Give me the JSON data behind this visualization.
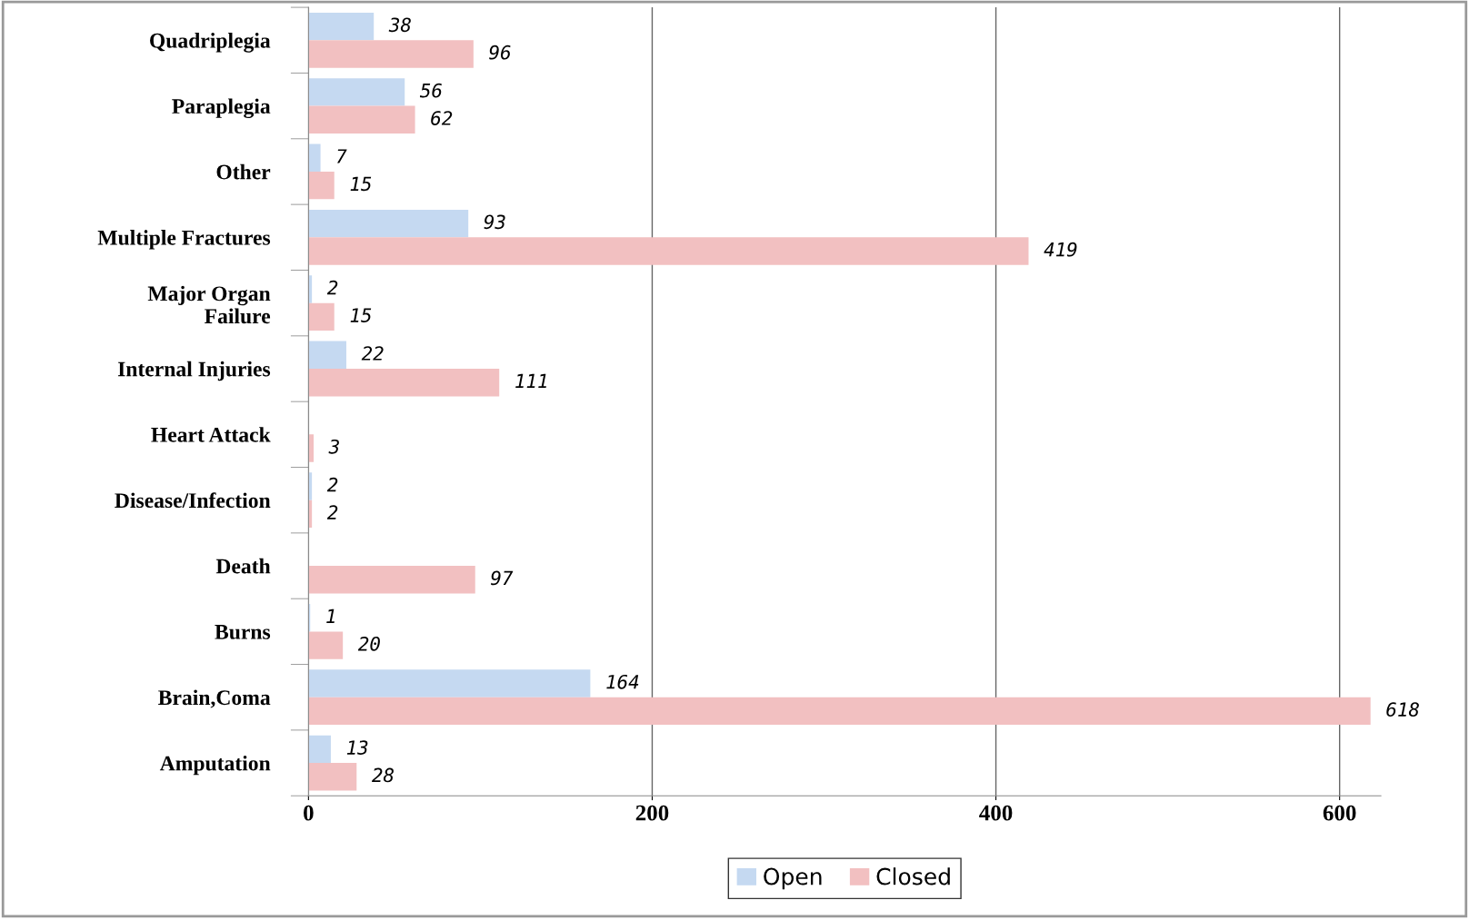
{
  "chart_data": {
    "type": "bar",
    "orientation": "horizontal",
    "categories": [
      "Quadriplegia",
      "Paraplegia",
      "Other",
      "Multiple Fractures",
      "Major Organ\nFailure",
      "Internal Injuries",
      "Heart Attack",
      "Disease/Infection",
      "Death",
      "Burns",
      "Brain,Coma",
      "Amputation"
    ],
    "series": [
      {
        "name": "Open",
        "color": "#c5d9f1",
        "values": [
          38,
          56,
          7,
          93,
          2,
          22,
          null,
          2,
          null,
          1,
          164,
          13
        ]
      },
      {
        "name": "Closed",
        "color": "#f2c0c1",
        "values": [
          96,
          62,
          15,
          419,
          15,
          111,
          3,
          2,
          97,
          20,
          618,
          28
        ]
      }
    ],
    "xlim": [
      0,
      624
    ],
    "xticks": [
      0,
      200,
      400,
      600
    ],
    "grid": "x",
    "legend": "bottom",
    "data_labels": true
  }
}
